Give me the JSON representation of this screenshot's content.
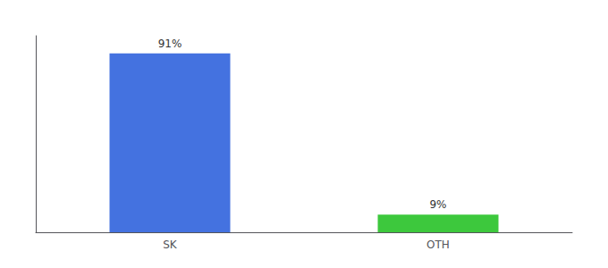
{
  "chart_data": {
    "type": "bar",
    "categories": [
      "SK",
      "OTH"
    ],
    "values": [
      91,
      9
    ],
    "value_labels": [
      "91%",
      "9%"
    ],
    "data_labels": true,
    "colors": [
      "#4472e0",
      "#3dc83d"
    ],
    "ylim": [
      0,
      100
    ],
    "tick_labels": "x",
    "grid": false
  }
}
